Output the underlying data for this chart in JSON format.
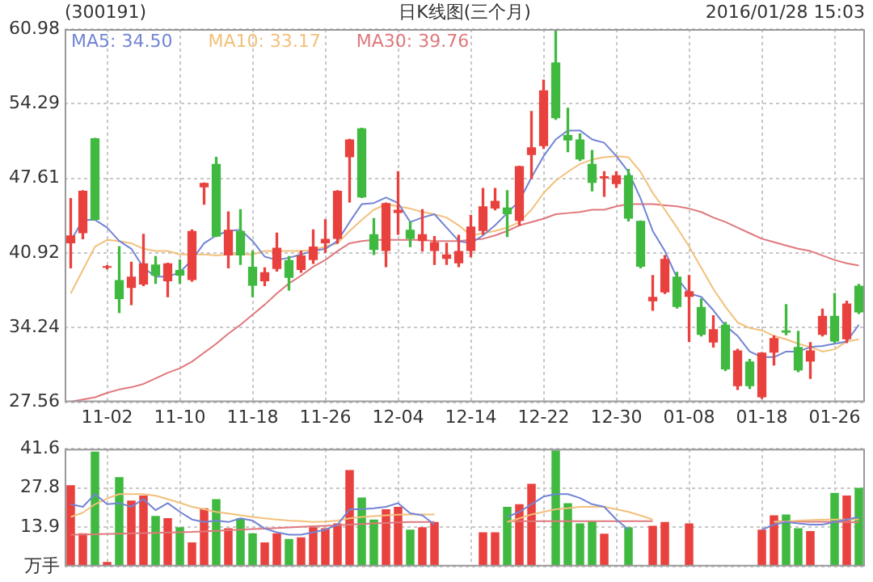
{
  "chart_data": [
    {
      "type": "candlestick",
      "title": "(300191)",
      "subtitle": "日K线图(三个月)",
      "annotations": [
        "2016/01/28 15:03"
      ],
      "categories": [
        null,
        null,
        null,
        "11-02",
        null,
        null,
        null,
        null,
        null,
        "11-10",
        null,
        null,
        null,
        null,
        null,
        "11-18",
        null,
        null,
        null,
        null,
        null,
        "11-26",
        null,
        null,
        null,
        null,
        null,
        "12-04",
        null,
        null,
        null,
        null,
        null,
        "12-14",
        null,
        null,
        null,
        null,
        null,
        "12-22",
        null,
        null,
        null,
        null,
        null,
        "12-30",
        null,
        null,
        null,
        null,
        null,
        "01-08",
        null,
        null,
        null,
        null,
        null,
        "01-18",
        null,
        null,
        null,
        null,
        null,
        "01-26",
        null,
        null
      ],
      "ohlc": [
        [
          41.8,
          45.8,
          39.6,
          42.5
        ],
        [
          42.7,
          46.5,
          42.2,
          46.5
        ],
        [
          51.2,
          51.2,
          43.9,
          43.9
        ],
        [
          39.6,
          39.8,
          39.5,
          39.7
        ],
        [
          38.5,
          41.5,
          35.6,
          36.8
        ],
        [
          37.8,
          40.1,
          36.3,
          38.8
        ],
        [
          38.1,
          42.6,
          38.0,
          40.0
        ],
        [
          39.9,
          40.6,
          38.2,
          38.9
        ],
        [
          38.4,
          40.0,
          37.0,
          40.0
        ],
        [
          39.4,
          40.3,
          38.2,
          38.9
        ],
        [
          38.5,
          43.0,
          38.4,
          42.9
        ],
        [
          46.8,
          47.2,
          45.3,
          47.2
        ],
        [
          48.9,
          49.5,
          42.4,
          42.4
        ],
        [
          40.7,
          44.6,
          39.6,
          43.0
        ],
        [
          42.9,
          44.8,
          39.9,
          40.7
        ],
        [
          39.7,
          41.1,
          37.0,
          38.0
        ],
        [
          38.4,
          39.6,
          38.0,
          39.2
        ],
        [
          39.5,
          42.7,
          39.3,
          41.4
        ],
        [
          40.3,
          40.6,
          37.6,
          38.7
        ],
        [
          39.4,
          41.1,
          39.2,
          40.7
        ],
        [
          40.3,
          43.0,
          40.0,
          41.5
        ],
        [
          41.8,
          43.9,
          41.0,
          42.2
        ],
        [
          42.2,
          46.5,
          41.8,
          46.5
        ],
        [
          49.5,
          51.1,
          45.5,
          51.1
        ],
        [
          52.1,
          52.1,
          45.9,
          45.9
        ],
        [
          42.6,
          44.0,
          40.8,
          41.2
        ],
        [
          41.1,
          45.4,
          39.7,
          45.4
        ],
        [
          44.5,
          48.2,
          42.6,
          44.8
        ],
        [
          43.0,
          43.7,
          41.5,
          42.2
        ],
        [
          42.0,
          44.8,
          41.1,
          42.6
        ],
        [
          41.1,
          42.4,
          39.9,
          41.9
        ],
        [
          40.4,
          41.8,
          39.9,
          40.8
        ],
        [
          40.0,
          42.5,
          39.7,
          41.1
        ],
        [
          41.1,
          44.3,
          40.6,
          43.3
        ],
        [
          42.9,
          46.7,
          42.6,
          45.1
        ],
        [
          44.9,
          46.7,
          44.8,
          45.6
        ],
        [
          45.0,
          46.5,
          42.4,
          44.4
        ],
        [
          43.8,
          48.7,
          43.4,
          48.7
        ],
        [
          49.7,
          53.6,
          47.6,
          50.4
        ],
        [
          50.5,
          56.4,
          50.3,
          55.5
        ],
        [
          58.0,
          60.9,
          52.9,
          53.0
        ],
        [
          51.5,
          53.9,
          50.0,
          51.0
        ],
        [
          51.1,
          51.6,
          49.2,
          49.3
        ],
        [
          48.9,
          50.1,
          46.5,
          47.2
        ],
        [
          47.6,
          48.2,
          46.0,
          47.8
        ],
        [
          47.1,
          48.2,
          46.8,
          47.9
        ],
        [
          47.9,
          48.4,
          43.8,
          44.0
        ],
        [
          43.8,
          43.8,
          39.6,
          39.7
        ],
        [
          36.6,
          38.9,
          35.8,
          37.0
        ],
        [
          37.4,
          40.7,
          37.3,
          40.4
        ],
        [
          38.8,
          39.2,
          36.0,
          36.1
        ],
        [
          37.0,
          38.9,
          33.0,
          37.5
        ],
        [
          36.1,
          36.8,
          33.5,
          33.6
        ],
        [
          32.9,
          35.3,
          32.5,
          34.1
        ],
        [
          34.5,
          34.7,
          30.4,
          30.5
        ],
        [
          29.0,
          32.3,
          28.7,
          32.2
        ],
        [
          31.2,
          31.4,
          28.8,
          29.0
        ],
        [
          28.0,
          32.0,
          27.9,
          32.0
        ],
        [
          32.0,
          33.5,
          30.9,
          33.3
        ],
        [
          34.0,
          36.3,
          33.6,
          33.8
        ],
        [
          32.5,
          33.9,
          30.3,
          30.4
        ],
        [
          31.2,
          32.9,
          29.7,
          32.2
        ],
        [
          33.6,
          35.9,
          33.5,
          35.3
        ],
        [
          35.3,
          37.3,
          32.9,
          33.0
        ],
        [
          33.2,
          36.6,
          32.9,
          36.4
        ],
        [
          38.0,
          38.1,
          35.5,
          35.6
        ]
      ],
      "colors": [
        "#e8413e",
        "#e8413e",
        "#3fb93f",
        "#e8413e",
        "#3fb93f",
        "#e8413e",
        "#e8413e",
        "#3fb93f",
        "#e8413e",
        "#3fb93f",
        "#e8413e",
        "#e8413e",
        "#3fb93f",
        "#e8413e",
        "#3fb93f",
        "#3fb93f",
        "#e8413e",
        "#e8413e",
        "#3fb93f",
        "#e8413e",
        "#e8413e",
        "#e8413e",
        "#e8413e",
        "#e8413e",
        "#3fb93f",
        "#3fb93f",
        "#e8413e",
        "#e8413e",
        "#3fb93f",
        "#e8413e",
        "#e8413e",
        "#e8413e",
        "#e8413e",
        "#e8413e",
        "#e8413e",
        "#e8413e",
        "#3fb93f",
        "#e8413e",
        "#e8413e",
        "#e8413e",
        "#3fb93f",
        "#3fb93f",
        "#3fb93f",
        "#3fb93f",
        "#e8413e",
        "#e8413e",
        "#3fb93f",
        "#3fb93f",
        "#e8413e",
        "#e8413e",
        "#3fb93f",
        "#e8413e",
        "#3fb93f",
        "#e8413e",
        "#3fb93f",
        "#e8413e",
        "#3fb93f",
        "#e8413e",
        "#e8413e",
        "#3fb93f",
        "#3fb93f",
        "#e8413e",
        "#e8413e",
        "#3fb93f",
        "#e8413e",
        "#3fb93f"
      ],
      "series": [
        {
          "name": "MA5: 34.50",
          "type": "line",
          "color": "#7284d4",
          "values": [
            42.0,
            43.9,
            43.9,
            43.2,
            42.0,
            41.3,
            39.6,
            38.8,
            38.8,
            39.2,
            40.3,
            41.8,
            42.5,
            42.9,
            43.0,
            42.0,
            40.6,
            40.3,
            40.5,
            40.8,
            41.1,
            41.3,
            42.0,
            43.7,
            45.3,
            45.4,
            45.9,
            45.4,
            43.7,
            44.1,
            44.4,
            43.2,
            42.0,
            41.8,
            42.5,
            43.4,
            44.5,
            45.6,
            47.7,
            49.6,
            51.1,
            51.9,
            51.9,
            51.1,
            50.8,
            49.6,
            48.2,
            45.8,
            42.9,
            41.1,
            38.7,
            37.3,
            37.0,
            35.8,
            34.4,
            33.5,
            32.1,
            31.6,
            31.6,
            32.1,
            32.1,
            32.5,
            32.6,
            32.8,
            33.0,
            34.5
          ]
        },
        {
          "name": "MA10: 33.17",
          "type": "line",
          "color": "#f2c07c",
          "values": [
            37.3,
            39.4,
            41.5,
            42.1,
            42.0,
            41.8,
            41.3,
            41.1,
            41.1,
            40.8,
            40.8,
            40.8,
            40.7,
            40.8,
            40.8,
            40.8,
            41.1,
            41.1,
            41.1,
            41.1,
            41.2,
            41.5,
            41.8,
            42.9,
            43.9,
            44.8,
            45.3,
            45.1,
            44.9,
            44.6,
            44.4,
            44.1,
            43.4,
            42.5,
            42.7,
            42.9,
            43.2,
            43.7,
            44.8,
            46.3,
            47.4,
            48.2,
            48.9,
            49.3,
            49.5,
            49.6,
            49.5,
            48.2,
            46.3,
            44.8,
            43.2,
            41.5,
            39.6,
            37.7,
            36.1,
            34.7,
            34.2,
            34.0,
            33.5,
            33.2,
            32.8,
            32.5,
            32.1,
            32.3,
            33.0,
            33.2
          ]
        },
        {
          "name": "MA30: 39.76",
          "type": "line",
          "color": "#e0787c",
          "values": [
            27.6,
            27.8,
            28.0,
            28.4,
            28.7,
            28.9,
            29.2,
            29.7,
            30.2,
            30.6,
            31.2,
            32.0,
            32.8,
            33.7,
            34.5,
            35.4,
            36.3,
            37.3,
            38.2,
            38.9,
            39.7,
            40.3,
            41.1,
            41.8,
            42.0,
            42.1,
            42.1,
            42.1,
            42.1,
            42.1,
            42.0,
            42.0,
            42.0,
            42.1,
            42.2,
            42.5,
            42.9,
            43.4,
            43.7,
            44.0,
            44.4,
            44.5,
            44.6,
            44.8,
            44.8,
            45.1,
            45.3,
            45.3,
            45.3,
            45.2,
            45.1,
            44.9,
            44.6,
            44.1,
            43.7,
            43.2,
            42.7,
            42.2,
            41.9,
            41.6,
            41.3,
            41.1,
            40.7,
            40.3,
            40.0,
            39.8
          ]
        }
      ],
      "ylim": [
        27.56,
        60.98
      ],
      "yticks": [
        27.56,
        34.24,
        40.92,
        47.61,
        54.29,
        60.98
      ],
      "grid": true,
      "legend": "top left"
    },
    {
      "type": "bar",
      "tick_labels": "y",
      "categories": [
        null,
        null,
        null,
        null,
        null,
        null,
        null,
        null,
        null,
        null,
        null,
        null,
        null,
        null,
        null,
        null,
        null,
        null,
        null,
        null,
        null,
        null,
        null,
        null,
        null,
        null,
        null,
        null,
        null,
        null,
        null,
        null,
        null,
        null,
        null,
        null,
        null,
        null,
        null,
        null,
        null,
        null,
        null,
        null,
        null,
        null,
        null,
        null,
        null,
        null,
        null,
        null,
        null,
        null,
        null,
        null,
        null,
        null,
        null,
        null,
        null,
        null,
        null,
        null,
        null,
        null
      ],
      "series": [
        {
          "type": "bar",
          "colors": [
            "#e8413e",
            "#e8413e",
            "#3fb93f",
            "#e8413e",
            "#3fb93f",
            "#e8413e",
            "#e8413e",
            "#3fb93f",
            "#e8413e",
            "#3fb93f",
            "#e8413e",
            "#e8413e",
            "#3fb93f",
            "#e8413e",
            "#3fb93f",
            "#3fb93f",
            "#e8413e",
            "#e8413e",
            "#3fb93f",
            "#e8413e",
            "#e8413e",
            "#e8413e",
            "#e8413e",
            "#e8413e",
            "#3fb93f",
            "#3fb93f",
            "#e8413e",
            "#e8413e",
            "#3fb93f",
            "#e8413e",
            "#e8413e",
            "#e8413e",
            "#e8413e",
            "#e8413e",
            "#e8413e",
            "#e8413e",
            "#3fb93f",
            "#e8413e",
            "#e8413e",
            "#e8413e",
            "#3fb93f",
            "#3fb93f",
            "#3fb93f",
            "#3fb93f",
            "#e8413e",
            "#e8413e",
            "#3fb93f",
            "#3fb93f",
            "#e8413e",
            "#e8413e",
            "#3fb93f",
            "#e8413e",
            "#3fb93f",
            "#e8413e",
            "#3fb93f",
            "#e8413e",
            "#3fb93f",
            "#e8413e",
            "#e8413e",
            "#3fb93f",
            "#3fb93f",
            "#e8413e",
            "#e8413e",
            "#3fb93f",
            "#e8413e",
            "#3fb93f"
          ],
          "values": [
            28.7,
            11.7,
            40.6,
            1.6,
            31.6,
            23.3,
            25.1,
            17.9,
            17.1,
            13.9,
            8.5,
            20.6,
            23.8,
            13.5,
            17.1,
            11.7,
            8.5,
            11.7,
            9.7,
            10.3,
            13.9,
            13.5,
            15.2,
            34.1,
            24.4,
            16.6,
            20.2,
            21.1,
            13.0,
            13.9,
            15.7,
            null,
            null,
            null,
            12.1,
            12.1,
            21.1,
            22.0,
            29.2,
            null,
            41.0,
            22.4,
            15.2,
            16.1,
            11.6,
            null,
            13.9,
            null,
            14.4,
            15.7,
            null,
            15.2,
            null,
            null,
            null,
            null,
            null,
            13.0,
            18.1,
            18.4,
            13.5,
            12.5,
            null,
            26.0,
            25.1,
            27.8
          ]
        },
        {
          "type": "line",
          "color": "#7284d4",
          "values": [
            22.0,
            21.1,
            25.6,
            22.0,
            22.4,
            21.1,
            23.8,
            19.9,
            22.4,
            19.3,
            16.6,
            15.7,
            16.2,
            15.7,
            17.0,
            16.2,
            13.4,
            12.1,
            11.2,
            11.2,
            12.1,
            13.0,
            14.8,
            20.2,
            20.2,
            20.6,
            21.1,
            22.4,
            18.8,
            18.1,
            14.8,
            null,
            null,
            null,
            null,
            null,
            17.5,
            19.3,
            22.0,
            24.7,
            25.6,
            25.6,
            24.2,
            22.0,
            21.1,
            16.6,
            13.0,
            null,
            null,
            null,
            null,
            null,
            null,
            null,
            null,
            null,
            null,
            13.0,
            14.8,
            15.7,
            15.2,
            14.8,
            14.8,
            15.7,
            16.6,
            17.5
          ]
        },
        {
          "type": "line",
          "color": "#f2c07c",
          "values": [
            17.5,
            19.0,
            22.0,
            24.0,
            25.6,
            25.6,
            25.6,
            25.0,
            23.8,
            22.5,
            21.1,
            20.2,
            19.3,
            18.7,
            18.1,
            17.5,
            17.0,
            16.6,
            16.2,
            16.0,
            15.7,
            15.9,
            16.2,
            17.0,
            17.5,
            17.8,
            18.1,
            18.3,
            18.4,
            18.4,
            18.4,
            null,
            null,
            null,
            null,
            null,
            15.7,
            17.0,
            18.4,
            19.3,
            20.2,
            20.6,
            21.1,
            21.1,
            21.1,
            20.2,
            19.3,
            18.0,
            16.6,
            null,
            null,
            null,
            null,
            null,
            null,
            null,
            null,
            null,
            15.7,
            15.9,
            16.2,
            16.4,
            16.6,
            16.6,
            16.6,
            16.6
          ]
        },
        {
          "type": "line",
          "color": "#e0787c",
          "values": [
            11.2,
            11.3,
            11.4,
            11.5,
            11.6,
            11.7,
            11.8,
            11.9,
            12.0,
            12.1,
            12.2,
            12.4,
            12.6,
            12.8,
            13.0,
            13.2,
            13.4,
            13.6,
            13.8,
            14.0,
            14.2,
            14.4,
            14.6,
            14.8,
            15.0,
            15.2,
            15.4,
            15.6,
            15.7,
            15.7,
            15.7,
            null,
            null,
            null,
            null,
            null,
            16.0,
            16.0,
            16.0,
            16.0,
            16.0,
            16.0,
            16.0,
            16.0,
            16.0,
            16.0,
            16.0,
            16.0,
            16.0,
            null,
            null,
            null,
            null,
            null,
            null,
            null,
            null,
            null,
            16.0,
            15.9,
            15.9,
            15.8,
            15.8,
            15.7,
            15.7,
            15.6
          ]
        }
      ],
      "ylim": [
        0,
        41.6
      ],
      "yticks": [
        {
          "value": 0,
          "label": "万手"
        },
        13.9,
        27.8,
        41.6
      ],
      "grid": true
    }
  ]
}
